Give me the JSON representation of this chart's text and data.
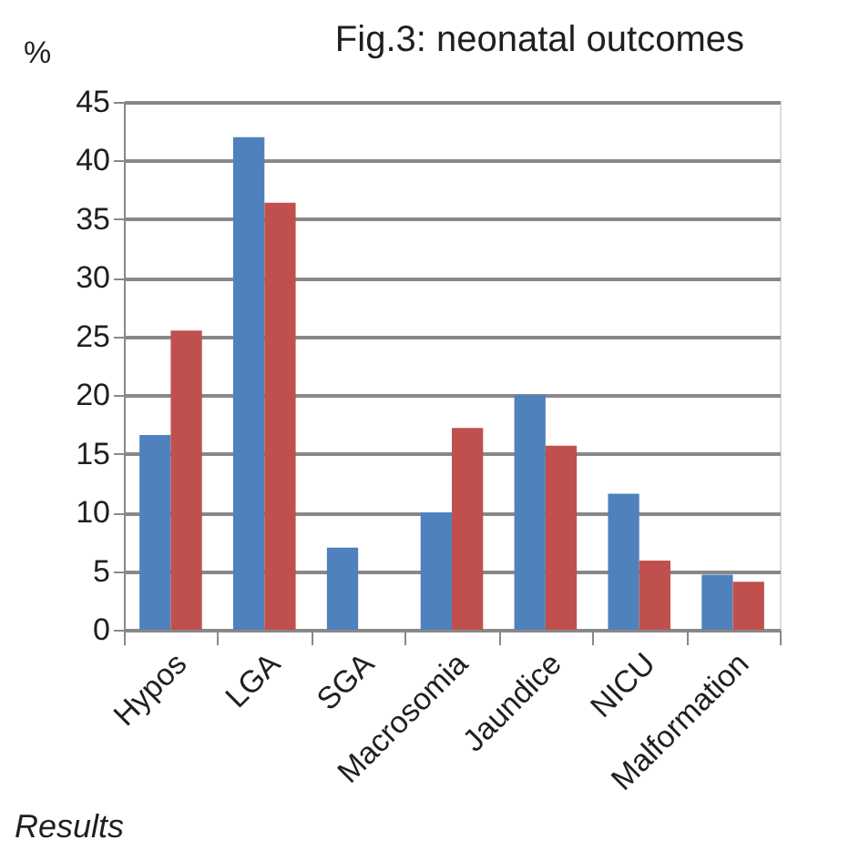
{
  "chart_data": {
    "type": "bar",
    "title": "Fig.3: neonatal outcomes",
    "ylabel": "%",
    "categories": [
      "Hypos",
      "LGA",
      "SGA",
      "Macrosomia",
      "Jaundice",
      "NICU",
      "Malformation"
    ],
    "series": [
      {
        "color": "#4f81bd",
        "values": [
          16.6,
          42.0,
          7.0,
          10.0,
          20.0,
          11.6,
          4.7
        ]
      },
      {
        "color": "#c0504d",
        "values": [
          25.5,
          36.4,
          0,
          17.2,
          15.7,
          5.9,
          4.1
        ]
      }
    ],
    "ylim": [
      0,
      45
    ],
    "yticks": [
      0,
      5,
      10,
      15,
      20,
      25,
      30,
      35,
      40,
      45
    ],
    "grid": "y",
    "annotations": [
      "Results"
    ]
  }
}
